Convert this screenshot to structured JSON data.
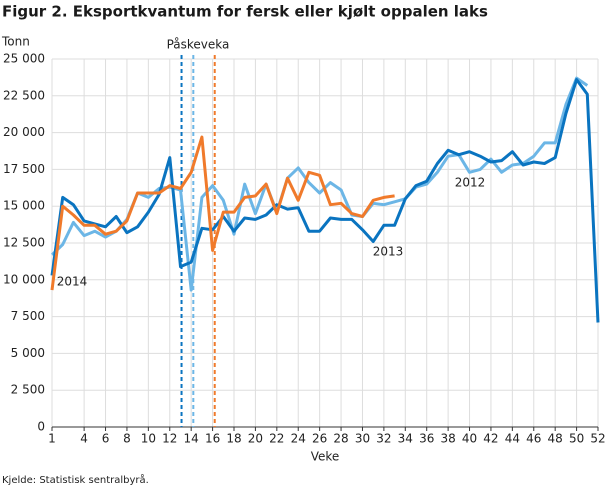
{
  "chart_data": {
    "type": "line",
    "title": "Figur 2. Eksportkvantum for fersk eller kjølt oppalen laks",
    "y_label": "Tonn",
    "x_label": "Veke",
    "source": "Kjelde: Statistisk sentralbyrå.",
    "x": [
      1,
      2,
      3,
      4,
      5,
      6,
      7,
      8,
      9,
      10,
      11,
      12,
      13,
      14,
      15,
      16,
      17,
      18,
      19,
      20,
      21,
      22,
      23,
      24,
      25,
      26,
      27,
      28,
      29,
      30,
      31,
      32,
      33,
      34,
      35,
      36,
      37,
      38,
      39,
      40,
      41,
      42,
      43,
      44,
      45,
      46,
      47,
      48,
      49,
      50,
      51,
      52
    ],
    "xlim": [
      1,
      52
    ],
    "xticks": [
      1,
      4,
      6,
      8,
      10,
      12,
      14,
      16,
      18,
      20,
      22,
      24,
      26,
      28,
      30,
      32,
      34,
      36,
      38,
      40,
      42,
      44,
      46,
      48,
      50,
      52
    ],
    "ylim": [
      0,
      25000
    ],
    "yticks": [
      0,
      {
        "value": 2500,
        "label": "2 500"
      },
      {
        "value": 5000,
        "label": "5 000"
      },
      {
        "value": 7500,
        "label": "7 500"
      },
      {
        "value": 10000,
        "label": "10 000"
      },
      {
        "value": 12500,
        "label": "12 500"
      },
      {
        "value": 15000,
        "label": "15 000"
      },
      {
        "value": 17500,
        "label": "17 500"
      },
      {
        "value": 20000,
        "label": "20 000"
      },
      {
        "value": 22500,
        "label": "22 500"
      },
      {
        "value": 25000,
        "label": "25 000"
      }
    ],
    "grid": true,
    "series": [
      {
        "name": "2012",
        "color": "#6cb6e6",
        "values": [
          11700,
          12400,
          13900,
          13000,
          13300,
          12900,
          13300,
          14100,
          15900,
          15600,
          16200,
          16300,
          16100,
          9300,
          15600,
          16400,
          15400,
          13100,
          16500,
          14500,
          16500,
          14600,
          16900,
          17600,
          16600,
          15900,
          16600,
          16100,
          14400,
          14300,
          15200,
          15100,
          15300,
          15500,
          16300,
          16500,
          17300,
          18400,
          18500,
          17300,
          17500,
          18200,
          17300,
          17800,
          17900,
          18400,
          19300,
          19300,
          21900,
          23700,
          23200,
          null
        ]
      },
      {
        "name": "2013",
        "color": "#0a74c0",
        "values": [
          10300,
          15600,
          15100,
          14000,
          13800,
          13600,
          14300,
          13200,
          13600,
          14600,
          15800,
          18300,
          10900,
          11200,
          13500,
          13400,
          14300,
          13300,
          14200,
          14100,
          14400,
          15100,
          14800,
          14900,
          13300,
          13300,
          14200,
          14100,
          14100,
          13400,
          12600,
          13700,
          13700,
          15500,
          16400,
          16700,
          17900,
          18800,
          18500,
          18700,
          18400,
          18000,
          18100,
          18700,
          17800,
          18000,
          17900,
          18300,
          21300,
          23600,
          22600,
          7100
        ]
      },
      {
        "name": "2014",
        "color": "#f07a2b",
        "values": [
          9300,
          15000,
          14400,
          13700,
          13700,
          13100,
          13300,
          14000,
          15900,
          15900,
          15900,
          16400,
          16200,
          17300,
          19700,
          12000,
          14600,
          14600,
          15600,
          15700,
          16500,
          14500,
          16900,
          15400,
          17300,
          17100,
          15100,
          15200,
          14500,
          14300,
          15400,
          15600,
          15700,
          null,
          null,
          null,
          null,
          null,
          null,
          null,
          null,
          null,
          null,
          null,
          null,
          null,
          null,
          null,
          null,
          null,
          null,
          null
        ]
      }
    ],
    "annotation": "Påskeveka",
    "markers": [
      {
        "x": 13.1,
        "color": "#0a74c0"
      },
      {
        "x": 14.2,
        "color": "#6cb6e6"
      },
      {
        "x": 16.2,
        "color": "#f07a2b"
      }
    ]
  }
}
